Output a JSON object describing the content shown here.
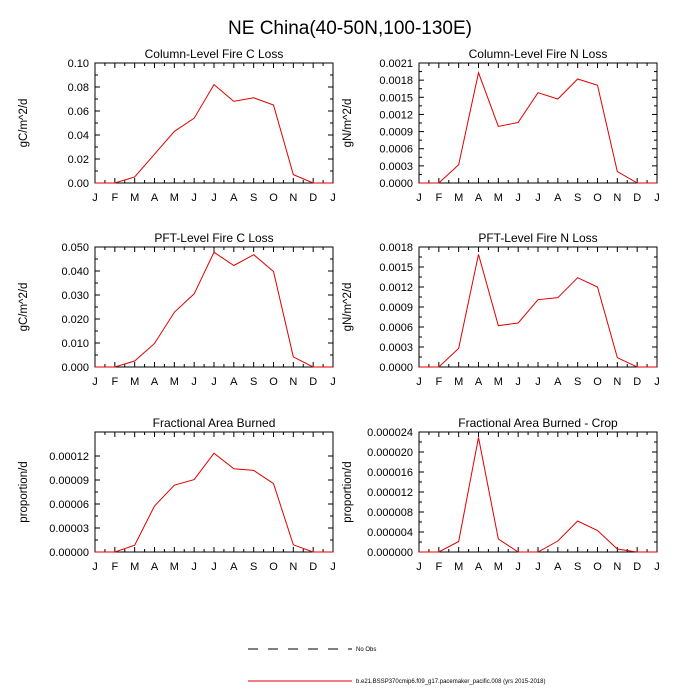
{
  "figure": {
    "title": "NE China(40-50N,100-130E)"
  },
  "legend": {
    "entries": [
      {
        "label": "No Obs",
        "style": "dashed",
        "color": "#000000"
      },
      {
        "label": "b.e21.BSSP370cmip6.f09_g17.pacemaker_pacific.008 (yrs 2015-2018)",
        "style": "solid",
        "color": "#e00000"
      }
    ]
  },
  "chart_data": [
    {
      "type": "line",
      "title": "Column-Level Fire C Loss",
      "ylabel": "gC/m^2/d",
      "x": [
        "J",
        "F",
        "M",
        "A",
        "M",
        "J",
        "J",
        "A",
        "S",
        "O",
        "N",
        "D",
        "J"
      ],
      "ylim": [
        0,
        0.1
      ],
      "yticks": [
        "0.00",
        "0.02",
        "0.04",
        "0.06",
        "0.08",
        "0.10"
      ],
      "series": [
        {
          "color": "#e00000",
          "values": [
            0.0,
            0.0,
            0.005,
            0.024,
            0.043,
            0.054,
            0.082,
            0.068,
            0.071,
            0.065,
            0.007,
            0.0,
            0.0
          ]
        }
      ]
    },
    {
      "type": "line",
      "title": "Column-Level Fire N Loss",
      "ylabel": "gN/m^2/d",
      "x": [
        "J",
        "F",
        "M",
        "A",
        "M",
        "J",
        "J",
        "A",
        "S",
        "O",
        "N",
        "D",
        "J"
      ],
      "ylim": [
        0,
        0.0021
      ],
      "yticks": [
        "0.0000",
        "0.0003",
        "0.0006",
        "0.0009",
        "0.0012",
        "0.0015",
        "0.0018",
        "0.0021"
      ],
      "series": [
        {
          "color": "#e00000",
          "values": [
            0.0,
            0.0,
            0.00032,
            0.00193,
            0.00099,
            0.00106,
            0.00158,
            0.00147,
            0.00182,
            0.00171,
            0.0002,
            0.0,
            0.0
          ]
        }
      ]
    },
    {
      "type": "line",
      "title": "PFT-Level Fire C Loss",
      "ylabel": "gC/m^2/d",
      "x": [
        "J",
        "F",
        "M",
        "A",
        "M",
        "J",
        "J",
        "A",
        "S",
        "O",
        "N",
        "D",
        "J"
      ],
      "ylim": [
        0,
        0.05
      ],
      "yticks": [
        "0.000",
        "0.010",
        "0.020",
        "0.030",
        "0.040",
        "0.050"
      ],
      "series": [
        {
          "color": "#e00000",
          "values": [
            0.0,
            0.0,
            0.0025,
            0.0098,
            0.0228,
            0.0305,
            0.0478,
            0.0423,
            0.0468,
            0.0398,
            0.0042,
            0.0,
            0.0
          ]
        }
      ]
    },
    {
      "type": "line",
      "title": "PFT-Level Fire N Loss",
      "ylabel": "gN/m^2/d",
      "x": [
        "J",
        "F",
        "M",
        "A",
        "M",
        "J",
        "J",
        "A",
        "S",
        "O",
        "N",
        "D",
        "J"
      ],
      "ylim": [
        0,
        0.0018
      ],
      "yticks": [
        "0.0000",
        "0.0003",
        "0.0006",
        "0.0009",
        "0.0012",
        "0.0015",
        "0.0018"
      ],
      "series": [
        {
          "color": "#e00000",
          "values": [
            0.0,
            0.0,
            0.00028,
            0.00169,
            0.00062,
            0.00066,
            0.00101,
            0.00104,
            0.00134,
            0.0012,
            0.00014,
            0.0,
            0.0
          ]
        }
      ]
    },
    {
      "type": "line",
      "title": "Fractional Area Burned",
      "ylabel": "proportion/d",
      "x": [
        "J",
        "F",
        "M",
        "A",
        "M",
        "J",
        "J",
        "A",
        "S",
        "O",
        "N",
        "D",
        "J"
      ],
      "ylim": [
        0,
        0.00015
      ],
      "yticks": [
        "0.00000",
        "0.00003",
        "0.00006",
        "0.00009",
        "0.00012"
      ],
      "series": [
        {
          "color": "#e00000",
          "values": [
            0.0,
            0.0,
            8.5e-06,
            5.75e-05,
            8.35e-05,
            9.05e-05,
            0.0001235,
            0.000104,
            0.000102,
            8.55e-05,
            9e-06,
            0.0,
            0.0
          ]
        }
      ]
    },
    {
      "type": "line",
      "title": "Fractional Area Burned - Crop",
      "ylabel": "proportion/d",
      "x": [
        "J",
        "F",
        "M",
        "A",
        "M",
        "J",
        "J",
        "A",
        "S",
        "O",
        "N",
        "D",
        "J"
      ],
      "ylim": [
        0,
        2.4e-05
      ],
      "yticks": [
        "0.000000",
        "0.000004",
        "0.000008",
        "0.000012",
        "0.000016",
        "0.000020",
        "0.000024"
      ],
      "series": [
        {
          "color": "#e00000",
          "values": [
            0.0,
            0.0,
            2.1e-06,
            2.29e-05,
            2.6e-06,
            0.0,
            0.0,
            2.2e-06,
            6.2e-06,
            4.3e-06,
            6e-07,
            0.0,
            0.0
          ]
        }
      ]
    }
  ]
}
